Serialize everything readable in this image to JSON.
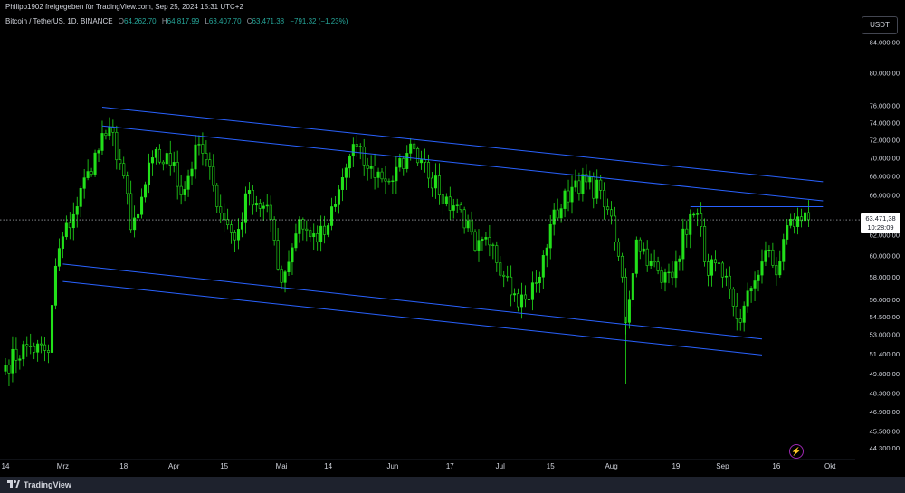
{
  "header": {
    "credit": "Philipp1902 freigegeben für TradingView.com, Sep 25, 2024 15:31 UTC+2"
  },
  "legend": {
    "symbol": "Bitcoin / TetherUS, 1D, BINANCE",
    "o_label": "O",
    "o_value": "64.262,70",
    "h_label": "H",
    "h_value": "64.817,99",
    "l_label": "L",
    "l_value": "63.407,70",
    "c_label": "C",
    "c_value": "63.471,38",
    "change": "−791,32 (−1,23%)"
  },
  "currency_button": "USDT",
  "price_badge": {
    "price": "63.471,38",
    "countdown": "10:28:09"
  },
  "footer": {
    "brand": "TradingView"
  },
  "icons": {
    "brand": "tradingview-logo-icon",
    "alert": "lightning-icon"
  },
  "colors": {
    "background": "#000000",
    "candle": "#22e01a",
    "channel": "#2962ff",
    "badge_bg": "#ffffff",
    "axis_text": "#d1d4dc"
  },
  "chart_data": {
    "type": "candlestick",
    "log_scale": true,
    "ylim": [
      43500,
      86000
    ],
    "y_ticks": [
      "44.300,00",
      "45.500,00",
      "46.900,00",
      "48.300,00",
      "49.800,00",
      "51.400,00",
      "53.000,00",
      "54.500,00",
      "56.000,00",
      "58.000,00",
      "60.000,00",
      "62.000,00",
      "64.000,00",
      "66.000,00",
      "68.000,00",
      "70.000,00",
      "72.000,00",
      "74.000,00",
      "76.000,00",
      "80.000,00",
      "84.000,00"
    ],
    "y_tick_values": [
      44300,
      45500,
      46900,
      48300,
      49800,
      51400,
      53000,
      54500,
      56000,
      58000,
      60000,
      62000,
      64000,
      66000,
      68000,
      70000,
      72000,
      74000,
      76000,
      80000,
      84000
    ],
    "x_ticks": [
      {
        "label": "14",
        "date": "2024-02-14"
      },
      {
        "label": "Mrz",
        "date": "2024-03-01"
      },
      {
        "label": "18",
        "date": "2024-03-18"
      },
      {
        "label": "Apr",
        "date": "2024-04-01"
      },
      {
        "label": "15",
        "date": "2024-04-15"
      },
      {
        "label": "Mai",
        "date": "2024-05-01"
      },
      {
        "label": "14",
        "date": "2024-05-14"
      },
      {
        "label": "Jun",
        "date": "2024-06-01"
      },
      {
        "label": "17",
        "date": "2024-06-17"
      },
      {
        "label": "Jul",
        "date": "2024-07-01"
      },
      {
        "label": "15",
        "date": "2024-07-15"
      },
      {
        "label": "Aug",
        "date": "2024-08-01"
      },
      {
        "label": "19",
        "date": "2024-08-19"
      },
      {
        "label": "Sep",
        "date": "2024-09-01"
      },
      {
        "label": "16",
        "date": "2024-09-16"
      },
      {
        "label": "Okt",
        "date": "2024-10-01"
      }
    ],
    "x_range": [
      "2024-02-14",
      "2024-10-08"
    ],
    "close_series": {
      "start_date": "2024-02-14",
      "anchors": [
        {
          "date": "2024-02-14",
          "close": 50500
        },
        {
          "date": "2024-02-20",
          "close": 52000
        },
        {
          "date": "2024-02-26",
          "close": 51500
        },
        {
          "date": "2024-02-28",
          "close": 59000
        },
        {
          "date": "2024-03-01",
          "close": 61800
        },
        {
          "date": "2024-03-04",
          "close": 64000
        },
        {
          "date": "2024-03-08",
          "close": 68500
        },
        {
          "date": "2024-03-13",
          "close": 72500
        },
        {
          "date": "2024-03-14",
          "close": 73500
        },
        {
          "date": "2024-03-18",
          "close": 68000
        },
        {
          "date": "2024-03-20",
          "close": 62500
        },
        {
          "date": "2024-03-22",
          "close": 64000
        },
        {
          "date": "2024-03-26",
          "close": 70000
        },
        {
          "date": "2024-04-01",
          "close": 69500
        },
        {
          "date": "2024-04-03",
          "close": 66000
        },
        {
          "date": "2024-04-08",
          "close": 71500
        },
        {
          "date": "2024-04-12",
          "close": 67000
        },
        {
          "date": "2024-04-15",
          "close": 63500
        },
        {
          "date": "2024-04-18",
          "close": 61500
        },
        {
          "date": "2024-04-22",
          "close": 66500
        },
        {
          "date": "2024-04-28",
          "close": 63500
        },
        {
          "date": "2024-05-01",
          "close": 57500
        },
        {
          "date": "2024-05-06",
          "close": 63500
        },
        {
          "date": "2024-05-09",
          "close": 61800
        },
        {
          "date": "2024-05-13",
          "close": 62000
        },
        {
          "date": "2024-05-16",
          "close": 65000
        },
        {
          "date": "2024-05-21",
          "close": 71500
        },
        {
          "date": "2024-05-25",
          "close": 68800
        },
        {
          "date": "2024-06-01",
          "close": 67500
        },
        {
          "date": "2024-06-05",
          "close": 70500
        },
        {
          "date": "2024-06-07",
          "close": 71000
        },
        {
          "date": "2024-06-10",
          "close": 69500
        },
        {
          "date": "2024-06-14",
          "close": 66000
        },
        {
          "date": "2024-06-20",
          "close": 64500
        },
        {
          "date": "2024-06-24",
          "close": 60500
        },
        {
          "date": "2024-06-28",
          "close": 61000
        },
        {
          "date": "2024-07-03",
          "close": 58000
        },
        {
          "date": "2024-07-05",
          "close": 56500
        },
        {
          "date": "2024-07-08",
          "close": 56000
        },
        {
          "date": "2024-07-12",
          "close": 58000
        },
        {
          "date": "2024-07-15",
          "close": 63000
        },
        {
          "date": "2024-07-22",
          "close": 67500
        },
        {
          "date": "2024-07-29",
          "close": 66500
        },
        {
          "date": "2024-07-31",
          "close": 64500
        },
        {
          "date": "2024-08-04",
          "close": 58000
        },
        {
          "date": "2024-08-05",
          "close": 54000
        },
        {
          "date": "2024-08-08",
          "close": 61500
        },
        {
          "date": "2024-08-12",
          "close": 59500
        },
        {
          "date": "2024-08-15",
          "close": 57500
        },
        {
          "date": "2024-08-19",
          "close": 59400
        },
        {
          "date": "2024-08-23",
          "close": 64000
        },
        {
          "date": "2024-08-26",
          "close": 62800
        },
        {
          "date": "2024-08-27",
          "close": 59400
        },
        {
          "date": "2024-09-01",
          "close": 58000
        },
        {
          "date": "2024-09-06",
          "close": 54000
        },
        {
          "date": "2024-09-09",
          "close": 57000
        },
        {
          "date": "2024-09-13",
          "close": 60500
        },
        {
          "date": "2024-09-16",
          "close": 58200
        },
        {
          "date": "2024-09-19",
          "close": 62900
        },
        {
          "date": "2024-09-23",
          "close": 63400
        },
        {
          "date": "2024-09-24",
          "close": 64200
        },
        {
          "date": "2024-09-25",
          "close": 63471
        }
      ]
    },
    "channels": [
      {
        "start": {
          "date": "2024-03-12",
          "price": 75800
        },
        "end": {
          "date": "2024-09-29",
          "price": 67400
        }
      },
      {
        "start": {
          "date": "2024-03-12",
          "price": 73600
        },
        "end": {
          "date": "2024-09-29",
          "price": 65400
        }
      },
      {
        "start": {
          "date": "2024-03-01",
          "price": 59200
        },
        "end": {
          "date": "2024-09-12",
          "price": 52600
        }
      },
      {
        "start": {
          "date": "2024-03-01",
          "price": 57600
        },
        "end": {
          "date": "2024-09-12",
          "price": 51300
        }
      },
      {
        "start": {
          "date": "2024-08-23",
          "price": 64800
        },
        "end": {
          "date": "2024-09-29",
          "price": 64800
        }
      }
    ],
    "last_price": 63471.38,
    "grid": false
  }
}
